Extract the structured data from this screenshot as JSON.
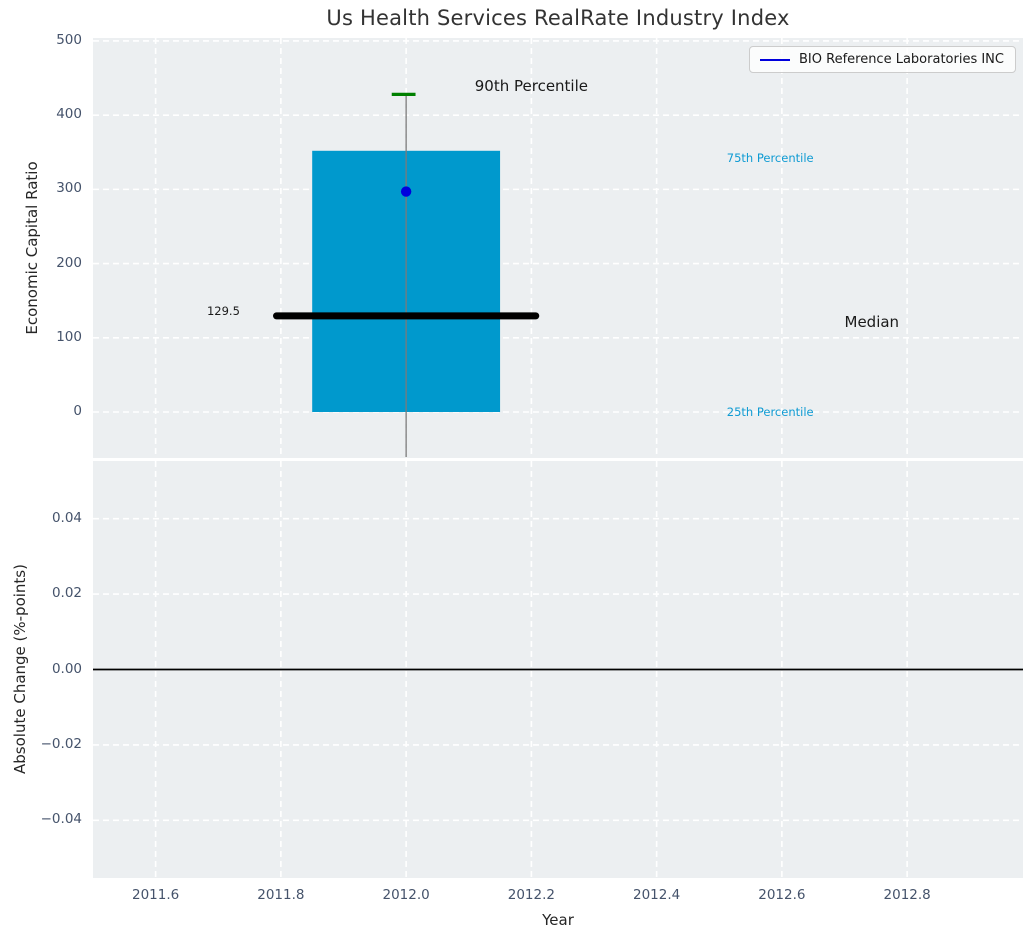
{
  "figure": {
    "title": "Us Health Services RealRate Industry Index",
    "plot_background": "#eceff1",
    "grid_color": "#ffffff",
    "tick_color": "#45536b"
  },
  "legend": {
    "label": "BIO Reference Laboratories INC",
    "line_color": "#0000dd"
  },
  "chart_data": [
    {
      "type": "boxplot",
      "title": "Us Health Services RealRate Industry Index",
      "ylabel": "Economic Capital Ratio",
      "xlim": [
        2011.5,
        2012.985
      ],
      "ylim": [
        -62,
        504
      ],
      "grid": true,
      "yticks": [
        {
          "label": "500",
          "value": 500
        },
        {
          "label": "400",
          "value": 400
        },
        {
          "label": "300",
          "value": 300
        },
        {
          "label": "200",
          "value": 200
        },
        {
          "label": "100",
          "value": 100
        },
        {
          "label": "0",
          "value": 0
        }
      ],
      "xgrid_values": [
        2011.6,
        2011.8,
        2012.0,
        2012.2,
        2012.4,
        2012.6,
        2012.8
      ],
      "box": {
        "x_center": 2012.0,
        "box_left": 2011.85,
        "box_right": 2012.15,
        "q25": 0,
        "q75": 352,
        "median": 129.5,
        "p90": 428,
        "whisker_low": -62,
        "median_line_left": 2011.793,
        "median_line_right": 2012.207,
        "cap_left": 2011.977,
        "cap_right": 2012.015,
        "box_color": "#0099cd",
        "median_color": "#000000",
        "p90_cap_color": "#008000",
        "whisker_color": "#7a7a7a"
      },
      "company_point": {
        "name": "BIO Reference Laboratories INC",
        "x": 2012.0,
        "value": 297,
        "color": "#0000dd"
      },
      "annotations": [
        {
          "id": "90th-percentile",
          "text": "90th Percentile",
          "x": 2012.2,
          "y": 439,
          "color": "#1a1a1a",
          "size": 15,
          "anchor": "middle"
        },
        {
          "id": "75th-percentile",
          "text": "75th Percentile",
          "x": 2012.512,
          "y": 342,
          "color": "#0f9bd3",
          "size": 11.5,
          "anchor": "start"
        },
        {
          "id": "median",
          "text": "Median",
          "x": 2012.7,
          "y": 121,
          "color": "#1a1a1a",
          "size": 15,
          "anchor": "start"
        },
        {
          "id": "25th-percentile",
          "text": "25th Percentile",
          "x": 2012.512,
          "y": 0,
          "color": "#0f9bd3",
          "size": 11.5,
          "anchor": "start"
        },
        {
          "id": "median-value",
          "text": "129.5",
          "x": 2011.682,
          "y": 136,
          "color": "#1a1a1a",
          "size": 11.5,
          "anchor": "start"
        }
      ]
    },
    {
      "type": "line",
      "ylabel": "Absolute Change (%-points)",
      "xlabel": "Year",
      "xlim": [
        2011.5,
        2012.985
      ],
      "ylim": [
        -0.0553,
        0.0553
      ],
      "grid": true,
      "zero_line": 0.0,
      "series": [],
      "yticks": [
        {
          "label": "0.04",
          "value": 0.04
        },
        {
          "label": "0.02",
          "value": 0.02
        },
        {
          "label": "0.00",
          "value": 0.0
        },
        {
          "label": "−0.02",
          "value": -0.02
        },
        {
          "label": "−0.04",
          "value": -0.04
        }
      ],
      "xticks": [
        {
          "label": "2011.6",
          "value": 2011.6
        },
        {
          "label": "2011.8",
          "value": 2011.8
        },
        {
          "label": "2012.0",
          "value": 2012.0
        },
        {
          "label": "2012.2",
          "value": 2012.2
        },
        {
          "label": "2012.4",
          "value": 2012.4
        },
        {
          "label": "2012.6",
          "value": 2012.6
        },
        {
          "label": "2012.8",
          "value": 2012.8
        }
      ]
    }
  ]
}
